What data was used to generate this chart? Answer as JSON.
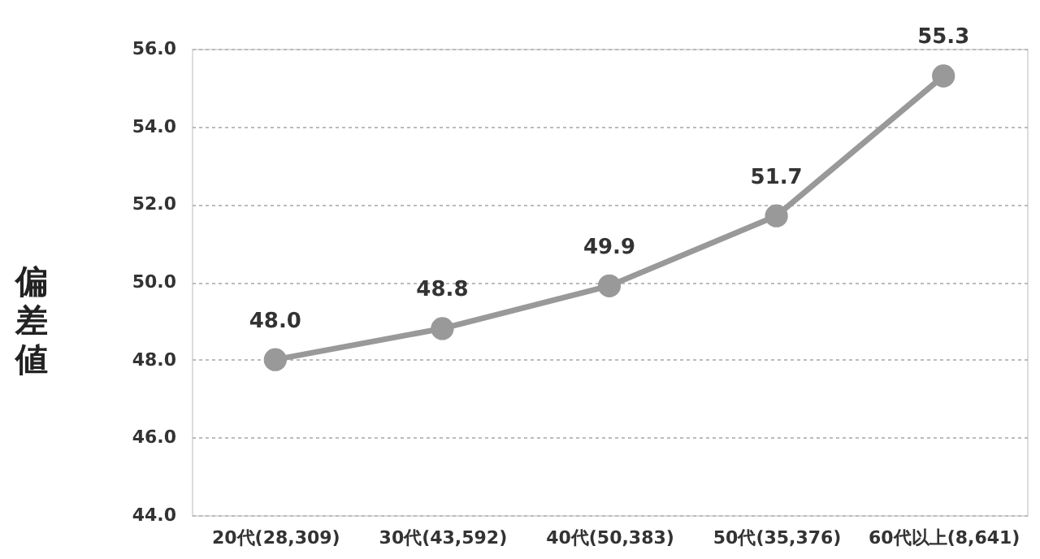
{
  "chart_data": {
    "type": "line",
    "ylabel": "偏差値",
    "categories": [
      "20代(28,309)",
      "30代(43,592)",
      "40代(50,383)",
      "50代(35,376)",
      "60代以上(8,641)"
    ],
    "series": [
      {
        "color": "#999999",
        "values": [
          48.0,
          48.8,
          49.9,
          51.7,
          55.3
        ],
        "value_labels": [
          "48.0",
          "48.8",
          "49.9",
          "51.7",
          "55.3"
        ]
      }
    ],
    "ylim": [
      44,
      56
    ],
    "yticks": [
      {
        "value": 44,
        "label": "44.0"
      },
      {
        "value": 46,
        "label": "46.0"
      },
      {
        "value": 48,
        "label": "48.0"
      },
      {
        "value": 50,
        "label": "50.0"
      },
      {
        "value": 52,
        "label": "52.0"
      },
      {
        "value": 54,
        "label": "54.0"
      },
      {
        "value": 56,
        "label": "56.0"
      }
    ],
    "grid": "y",
    "marker": "circle",
    "line_style": "solid"
  }
}
